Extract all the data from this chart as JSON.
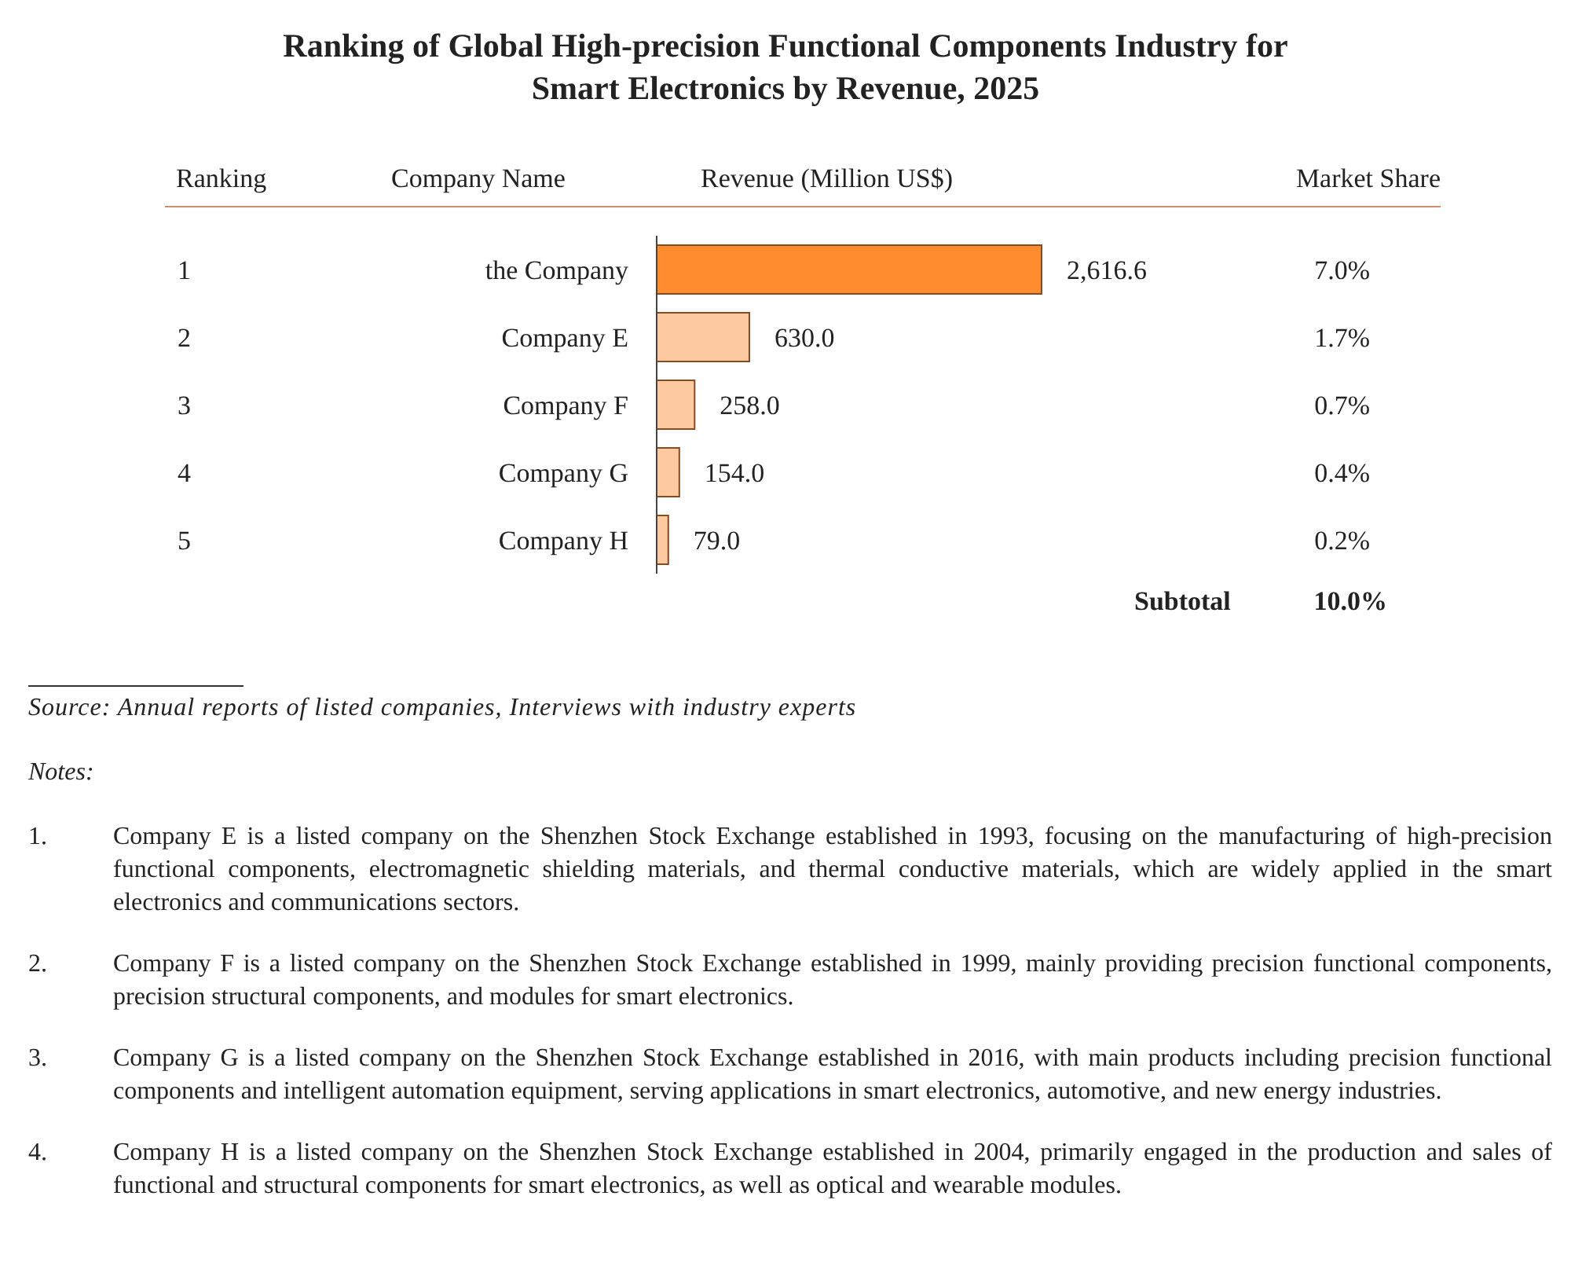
{
  "chart_data": {
    "type": "bar",
    "title": "Ranking of Global High-precision Functional Components Industry for Smart Electronics by Revenue, 2025",
    "ylabel": "Company Name",
    "xlabel": "Revenue (Million US$)",
    "categories": [
      "the Company",
      "Company E",
      "Company F",
      "Company G",
      "Company H"
    ],
    "values": [
      2616.6,
      630.0,
      258.0,
      154.0,
      79.0
    ],
    "colors": [
      "#ff8c2e",
      "#fcc9a0",
      "#fcc9a0",
      "#fcc9a0",
      "#fcc9a0"
    ],
    "value_labels": [
      "2,616.6",
      "630.0",
      "258.0",
      "154.0",
      "79.0"
    ],
    "annotations": [
      "Ranking",
      "Market Share",
      "1",
      "2",
      "3",
      "4",
      "5",
      "7.0%",
      "1.7%",
      "0.7%",
      "0.4%",
      "0.2%",
      "Subtotal",
      "10.0%",
      "Source: Annual reports of listed companies, Interviews with industry experts",
      "Notes:",
      "1.",
      "Company E is a listed company on the Shenzhen Stock Exchange established in 1993, focusing on the manufacturing of high-precision functional components, electromagnetic shielding materials, and thermal conductive materials, which are widely applied in the smart electronics and communications sectors.",
      "2.",
      "Company F is a listed company on the Shenzhen Stock Exchange established in 1999, mainly providing precision functional components, precision structural components, and modules for smart electronics.",
      "3.",
      "Company G is a listed company on the Shenzhen Stock Exchange established in 2016, with main products including precision functional components and intelligent automation equipment, serving applications in smart electronics, automotive, and new energy industries.",
      "4.",
      "Company H is a listed company on the Shenzhen Stock Exchange established in 2004, primarily engaged in the production and sales of functional and structural components for smart electronics, as well as optical and wearable modules."
    ],
    "orientation": "horizontal"
  }
}
